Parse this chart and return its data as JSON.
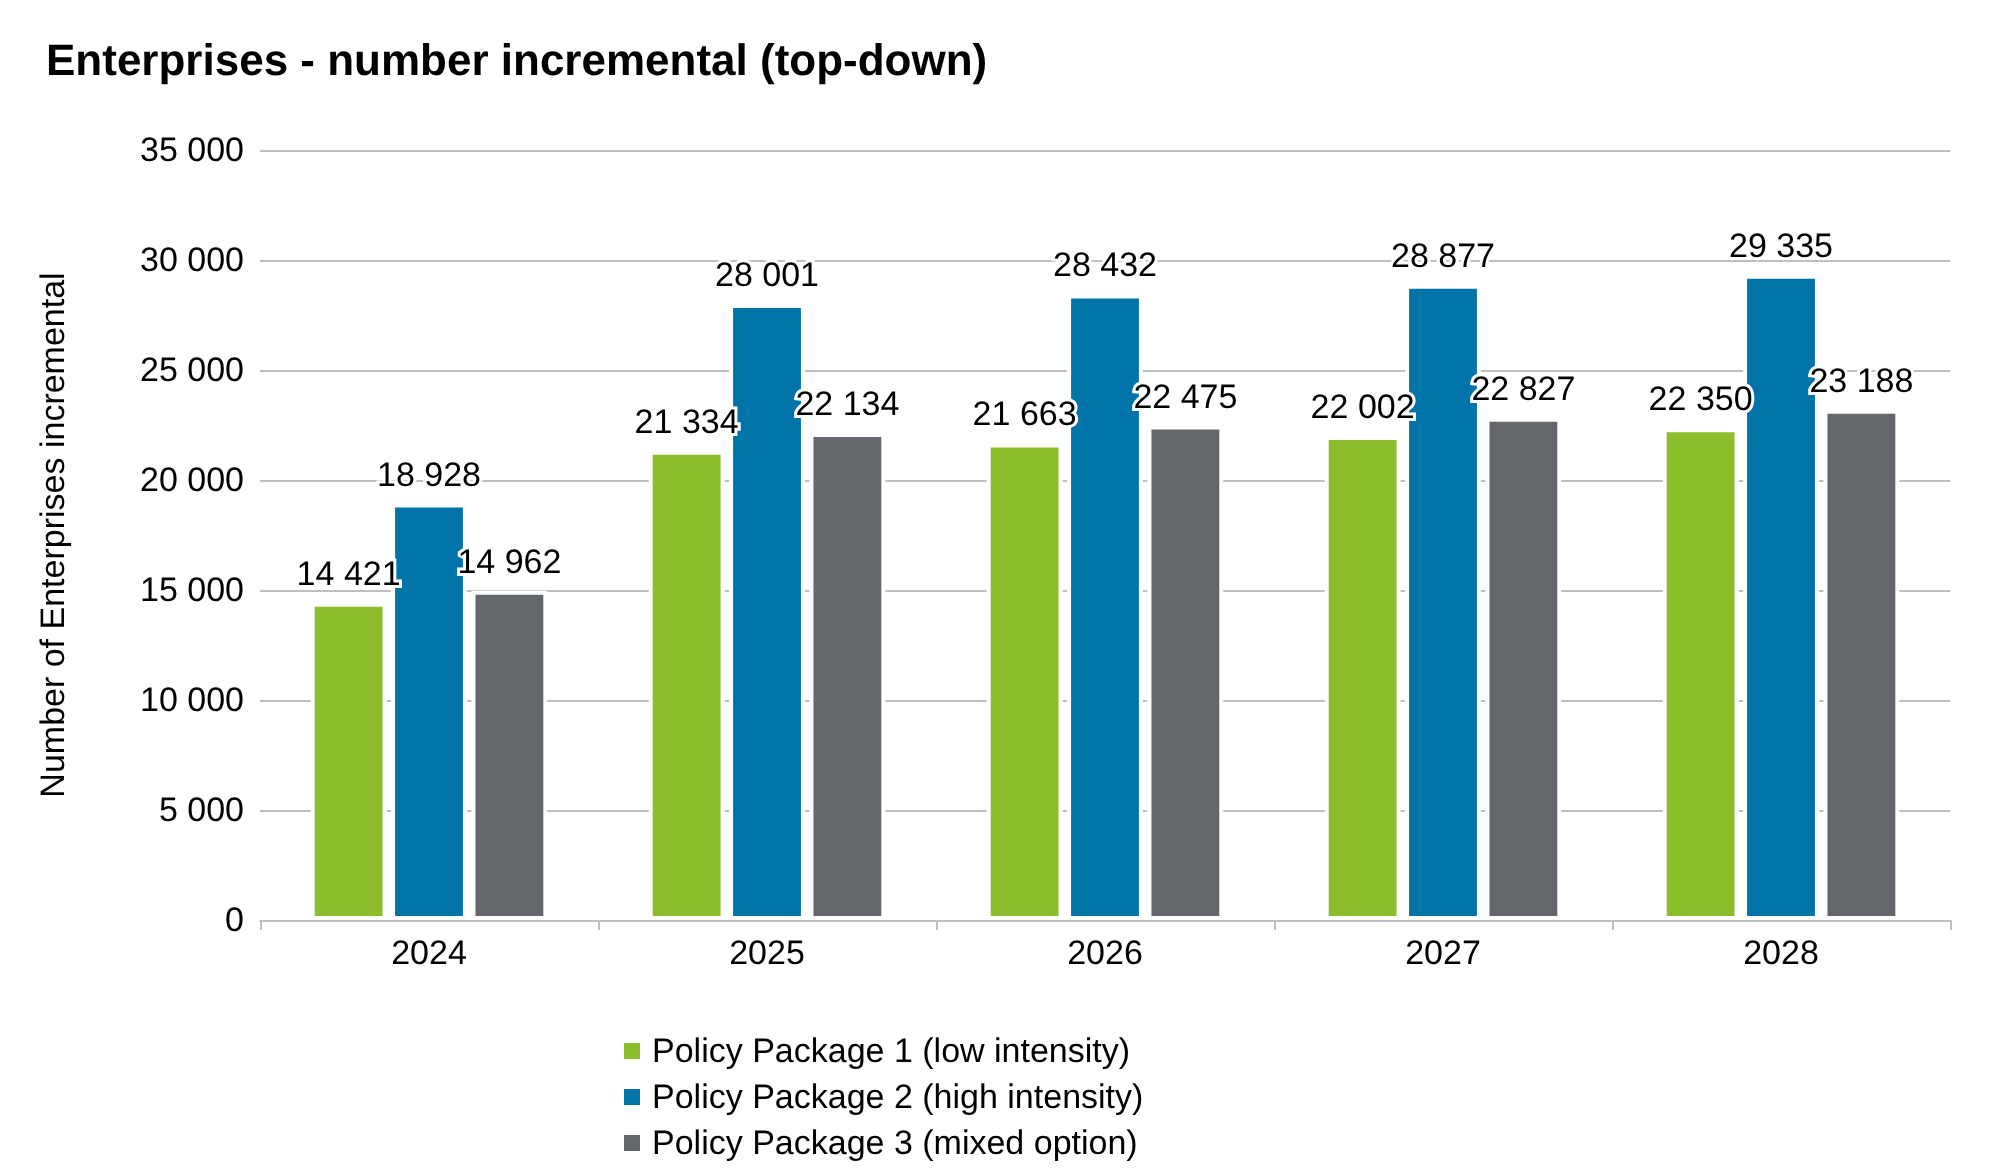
{
  "chart_data": {
    "type": "bar",
    "title": "Enterprises - number incremental (top-down)",
    "ylabel": "Number of Enterprises incremental",
    "categories": [
      "2024",
      "2025",
      "2026",
      "2027",
      "2028"
    ],
    "series": [
      {
        "name": "Policy Package 1 (low intensity)",
        "color": "#8cbd2a",
        "values": [
          14421,
          21334,
          21663,
          22002,
          22350
        ]
      },
      {
        "name": "Policy Package 2 (high intensity)",
        "color": "#0073a8",
        "values": [
          18928,
          28001,
          28432,
          28877,
          29335
        ]
      },
      {
        "name": "Policy Package 3 (mixed option)",
        "color": "#63666a",
        "values": [
          14962,
          22134,
          22475,
          22827,
          23188
        ]
      }
    ],
    "ylim": [
      0,
      35000
    ],
    "yticks": [
      0,
      5000,
      10000,
      15000,
      20000,
      25000,
      30000,
      35000
    ],
    "grid": "y",
    "legend": "bottom",
    "data_labels": true
  }
}
